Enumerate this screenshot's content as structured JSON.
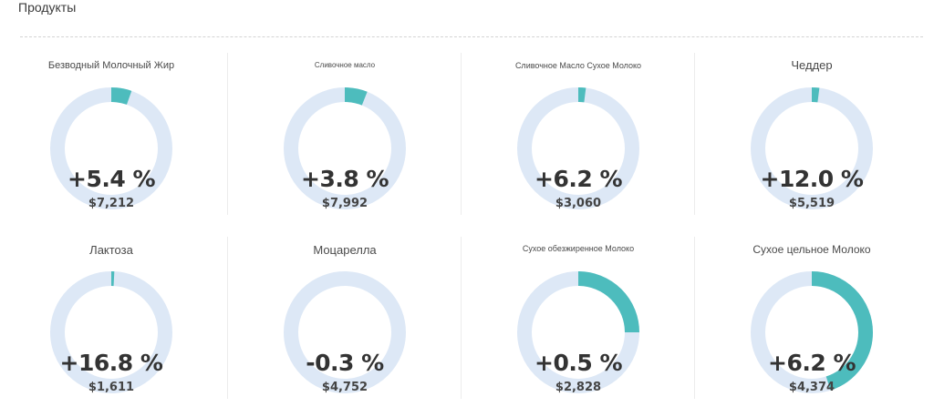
{
  "header": {
    "title": "Продукты"
  },
  "colors": {
    "ring_track": "#dde8f6",
    "ring_fill": "#4dbcbd"
  },
  "products": [
    {
      "name": "Безводный Молочный Жир",
      "change": "+5.4 %",
      "price": "$7,212",
      "fill": 0.054
    },
    {
      "name": "Сливочное масло",
      "change": "+3.8 %",
      "price": "$7,992",
      "fill": 0.06
    },
    {
      "name": "Сливочное Масло Сухое Молоко",
      "change": "+6.2 %",
      "price": "$3,060",
      "fill": 0.02
    },
    {
      "name": "Чеддер",
      "change": "+12.0 %",
      "price": "$5,519",
      "fill": 0.02
    },
    {
      "name": "Лактоза",
      "change": "+16.8 %",
      "price": "$1,611",
      "fill": 0.008
    },
    {
      "name": "Моцарелла",
      "change": "-0.3 %",
      "price": "$4,752",
      "fill": 0.0
    },
    {
      "name": "Сухое обезжиренное Молоко",
      "change": "+0.5 %",
      "price": "$2,828",
      "fill": 0.25
    },
    {
      "name": "Сухое цельное Молоко",
      "change": "+6.2 %",
      "price": "$4,374",
      "fill": 0.45
    }
  ]
}
